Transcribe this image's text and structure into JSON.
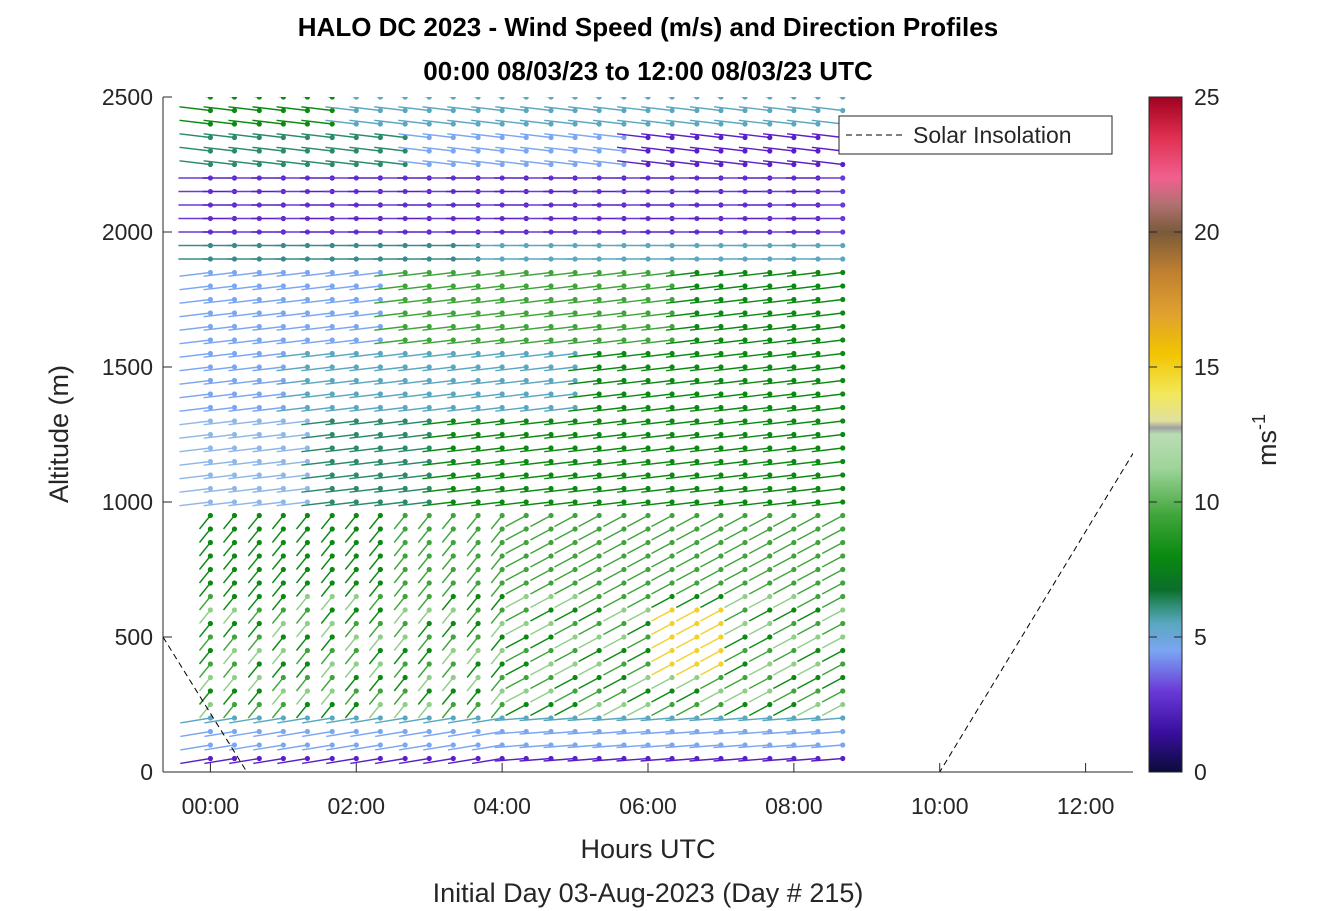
{
  "title": "HALO DC 2023 - Wind Speed (m/s) and Direction Profiles",
  "subtitle": "00:00 08/03/23 to 12:00 08/03/23  UTC",
  "chart_data": {
    "type": "scatter",
    "description_kind": "wind barb profile plot (arrows colored by speed)",
    "xlabel": "Hours UTC",
    "xlabel2": "Initial Day 03-Aug-2023 (Day # 215)",
    "ylabel": "Altitude (m)",
    "x_ticks": [
      "00:00",
      "02:00",
      "04:00",
      "06:00",
      "08:00",
      "10:00",
      "12:00"
    ],
    "y_ticks": [
      "0",
      "500",
      "1000",
      "1500",
      "2000",
      "2500"
    ],
    "xlim_hours": [
      -0.65,
      12.65
    ],
    "ylim": [
      0,
      2500
    ],
    "profile_times_hours": [
      0.0,
      0.33,
      0.67,
      1.0,
      1.33,
      1.67,
      2.0,
      2.33,
      2.67,
      3.0,
      3.33,
      3.67,
      4.0,
      4.33,
      4.67,
      5.0,
      5.33,
      5.67,
      6.0,
      6.33,
      6.67,
      7.0,
      7.33,
      7.67,
      8.0,
      8.33,
      8.67
    ],
    "colorbar": {
      "label": "ms",
      "label_exponent": "-1",
      "ticks": [
        "0",
        "5",
        "10",
        "15",
        "20",
        "25"
      ],
      "range": [
        0,
        25
      ]
    },
    "legend": {
      "entry": "Solar Insolation",
      "placement": "top-right",
      "style": "dashed black"
    },
    "solar_insolation": {
      "x_hours": [
        -0.65,
        0.5,
        10.0,
        12.65
      ],
      "y_m": [
        500,
        0,
        0,
        1180
      ]
    },
    "speed_regions": [
      {
        "altitude_range": [
          0,
          250
        ],
        "speed": "2-5 (purple/blue)"
      },
      {
        "altitude_range": [
          250,
          1000
        ],
        "speed": "6-11 (green)"
      },
      {
        "altitude_range": [
          400,
          600
        ],
        "speed": "14 (yellow, near 06:30-07:00)"
      },
      {
        "altitude_range": [
          1000,
          1900
        ],
        "speed": "4-8 (blue/teal/green)"
      },
      {
        "altitude_range": [
          1900,
          2250
        ],
        "speed": "2-4 (purple/blue)"
      },
      {
        "altitude_range": [
          2250,
          2500
        ],
        "speed": "3-7 (blue/green)"
      }
    ]
  }
}
